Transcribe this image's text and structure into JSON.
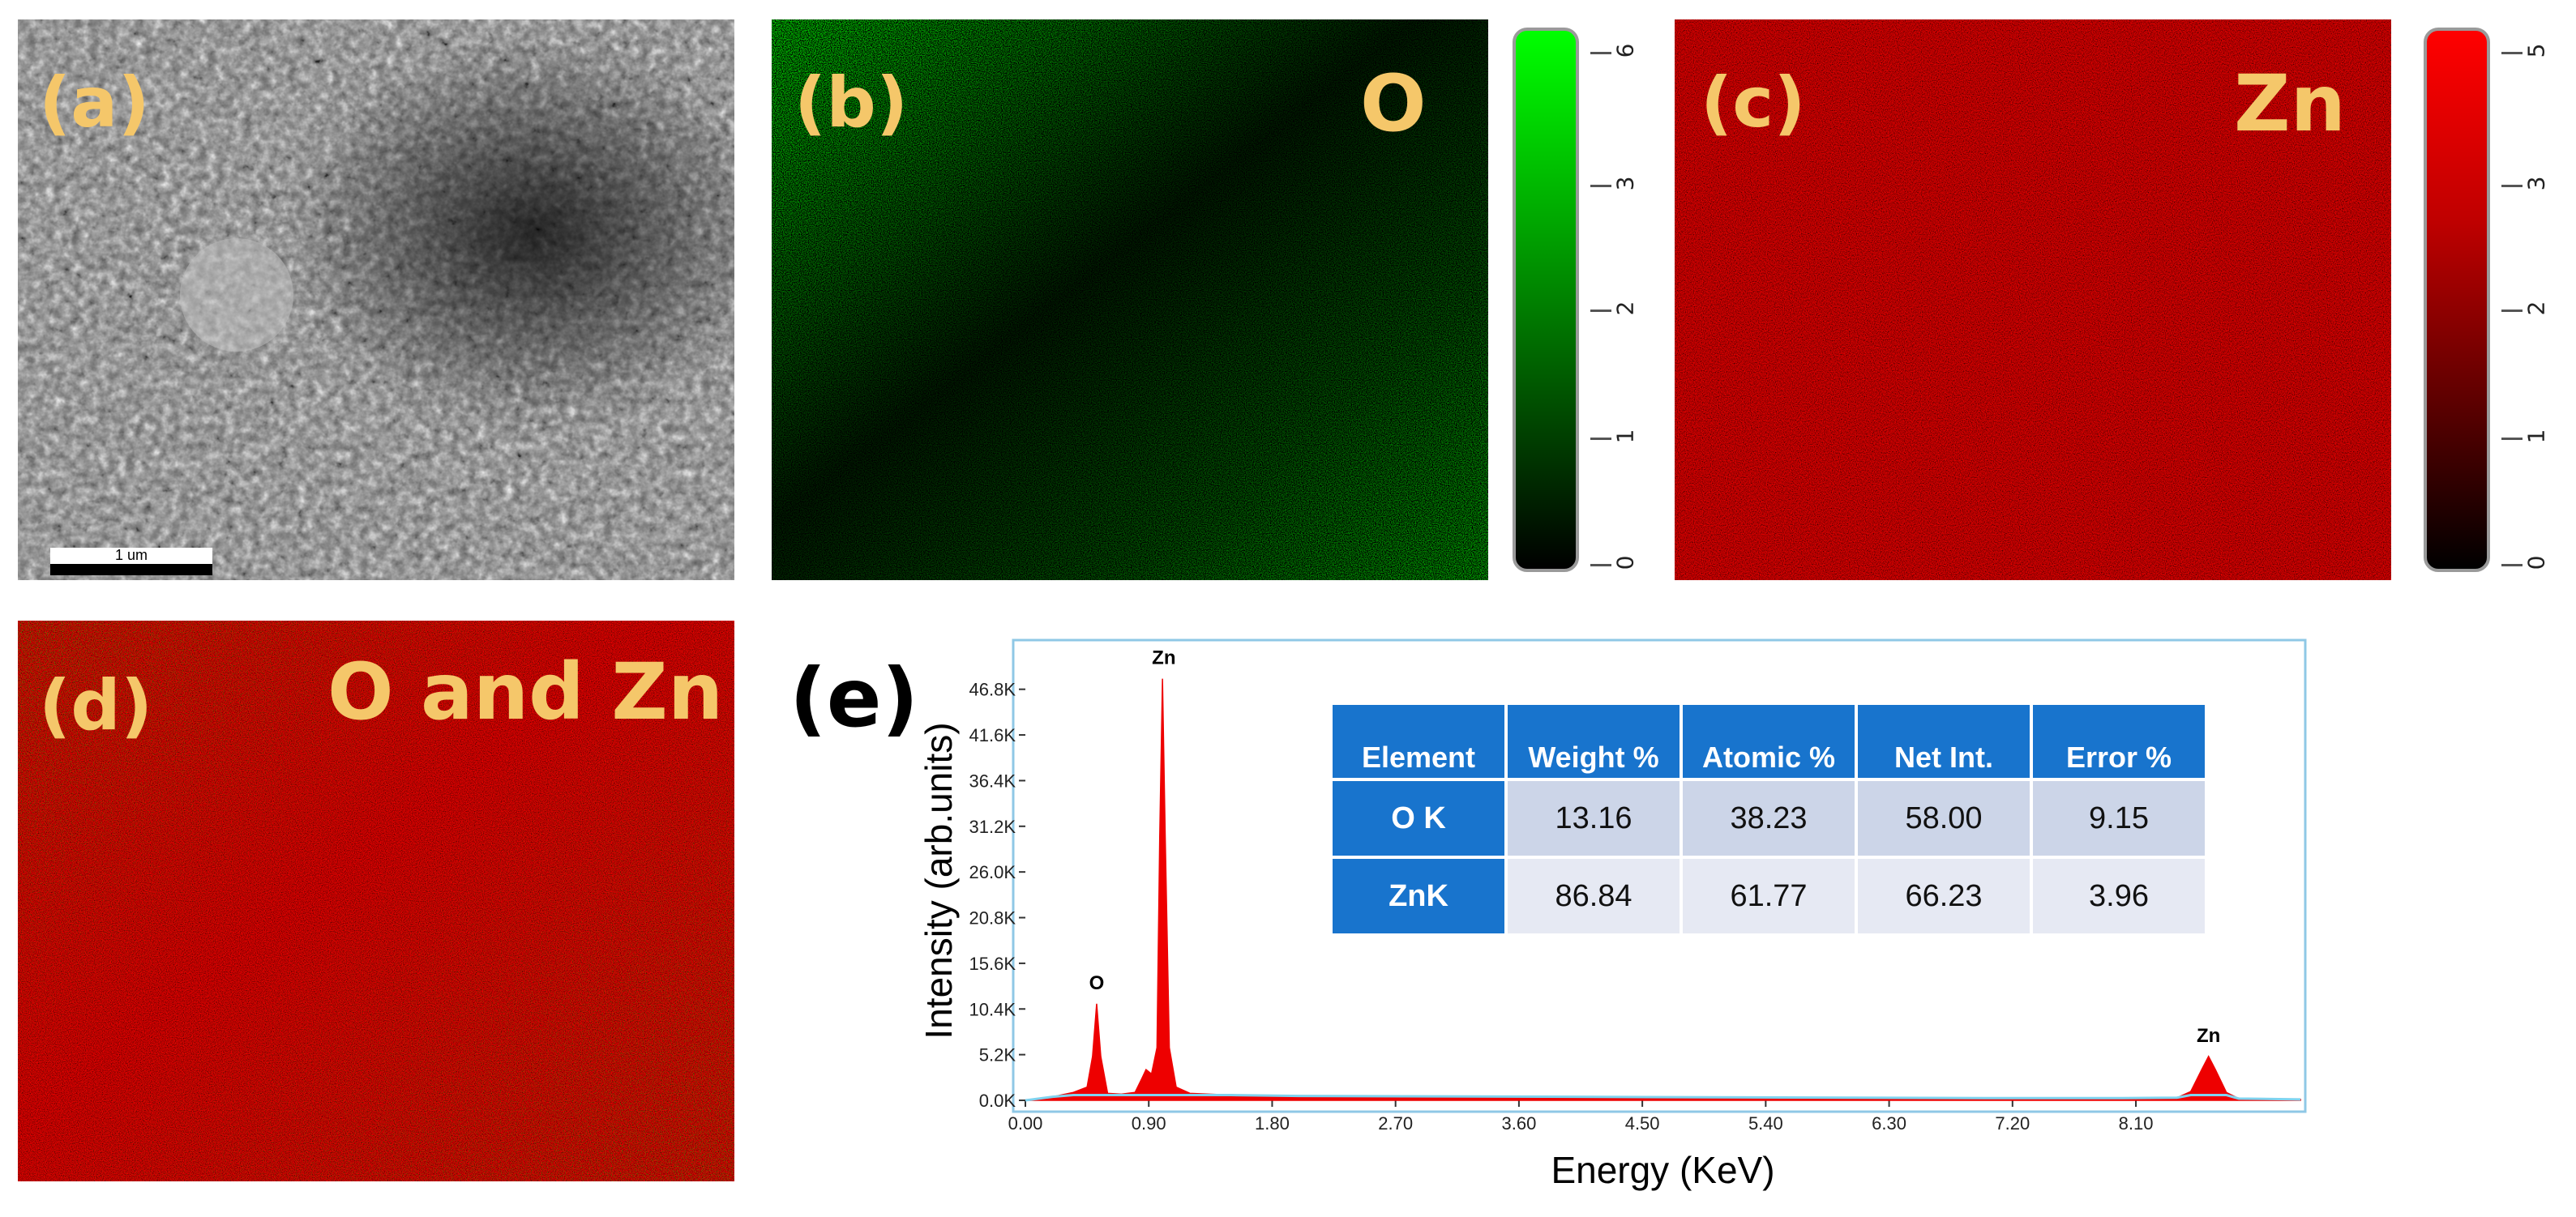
{
  "panels": {
    "a": {
      "label": "(a)",
      "scale_bar": "1 um"
    },
    "b": {
      "label": "(b)",
      "element": "O",
      "colorbar_ticks": [
        "0",
        "1",
        "2",
        "3",
        "6"
      ],
      "color": "#00ff00"
    },
    "c": {
      "label": "(c)",
      "element": "Zn",
      "colorbar_ticks": [
        "0",
        "1",
        "2",
        "3",
        "5"
      ],
      "color": "#ff0000"
    },
    "d": {
      "label": "(d)",
      "element": "O and Zn"
    },
    "e": {
      "label": "(e)"
    }
  },
  "table": {
    "headers": [
      "Element",
      "Weight %",
      "Atomic %",
      "Net Int.",
      "Error %"
    ],
    "rows": [
      [
        "O K",
        "13.16",
        "38.23",
        "58.00",
        "9.15"
      ],
      [
        "ZnK",
        "86.84",
        "61.77",
        "66.23",
        "3.96"
      ]
    ]
  },
  "chart_data": {
    "type": "line",
    "title": "",
    "xlabel": "Energy (KeV)",
    "ylabel": "Intensity (arb.units)",
    "xlim": [
      0,
      9.3
    ],
    "ylim": [
      0,
      50000
    ],
    "x_ticks": [
      "0.00",
      "0.90",
      "1.80",
      "2.70",
      "3.60",
      "4.50",
      "5.40",
      "6.30",
      "7.20",
      "8.10"
    ],
    "y_ticks": [
      "0.0K",
      "5.2K",
      "10.4K",
      "15.6K",
      "20.8K",
      "26.0K",
      "31.2K",
      "36.4K",
      "41.6K",
      "46.8K"
    ],
    "x_tick_values": [
      0,
      0.9,
      1.8,
      2.7,
      3.6,
      4.5,
      5.4,
      6.3,
      7.2,
      8.1
    ],
    "y_tick_values": [
      0,
      5200,
      10400,
      15600,
      20800,
      26000,
      31200,
      36400,
      41600,
      46800
    ],
    "peaks": [
      {
        "label": "O",
        "energy": 0.52,
        "intensity": 11000,
        "width": 0.025
      },
      {
        "label": "",
        "energy": 0.88,
        "intensity": 3500,
        "width": 0.03
      },
      {
        "label": "Zn",
        "energy": 1.01,
        "intensity": 48000,
        "width": 0.03
      },
      {
        "label": "Zn",
        "energy": 8.63,
        "intensity": 5000,
        "width": 0.05
      }
    ],
    "series": [
      {
        "name": "spectrum",
        "x": [
          0,
          0.2,
          0.35,
          0.45,
          0.49,
          0.52,
          0.55,
          0.6,
          0.7,
          0.8,
          0.85,
          0.88,
          0.92,
          0.96,
          0.98,
          1.0,
          1.02,
          1.05,
          1.1,
          1.2,
          1.5,
          2.0,
          3.0,
          4.0,
          5.0,
          6.0,
          7.0,
          8.0,
          8.4,
          8.5,
          8.58,
          8.63,
          8.68,
          8.76,
          8.85,
          9.3
        ],
        "y": [
          0,
          400,
          900,
          1500,
          5000,
          11000,
          5000,
          800,
          700,
          900,
          2500,
          3500,
          3000,
          6000,
          30000,
          48000,
          30000,
          6000,
          1500,
          800,
          600,
          500,
          450,
          400,
          350,
          300,
          250,
          250,
          300,
          1000,
          3500,
          5000,
          3500,
          900,
          200,
          100
        ]
      }
    ]
  }
}
